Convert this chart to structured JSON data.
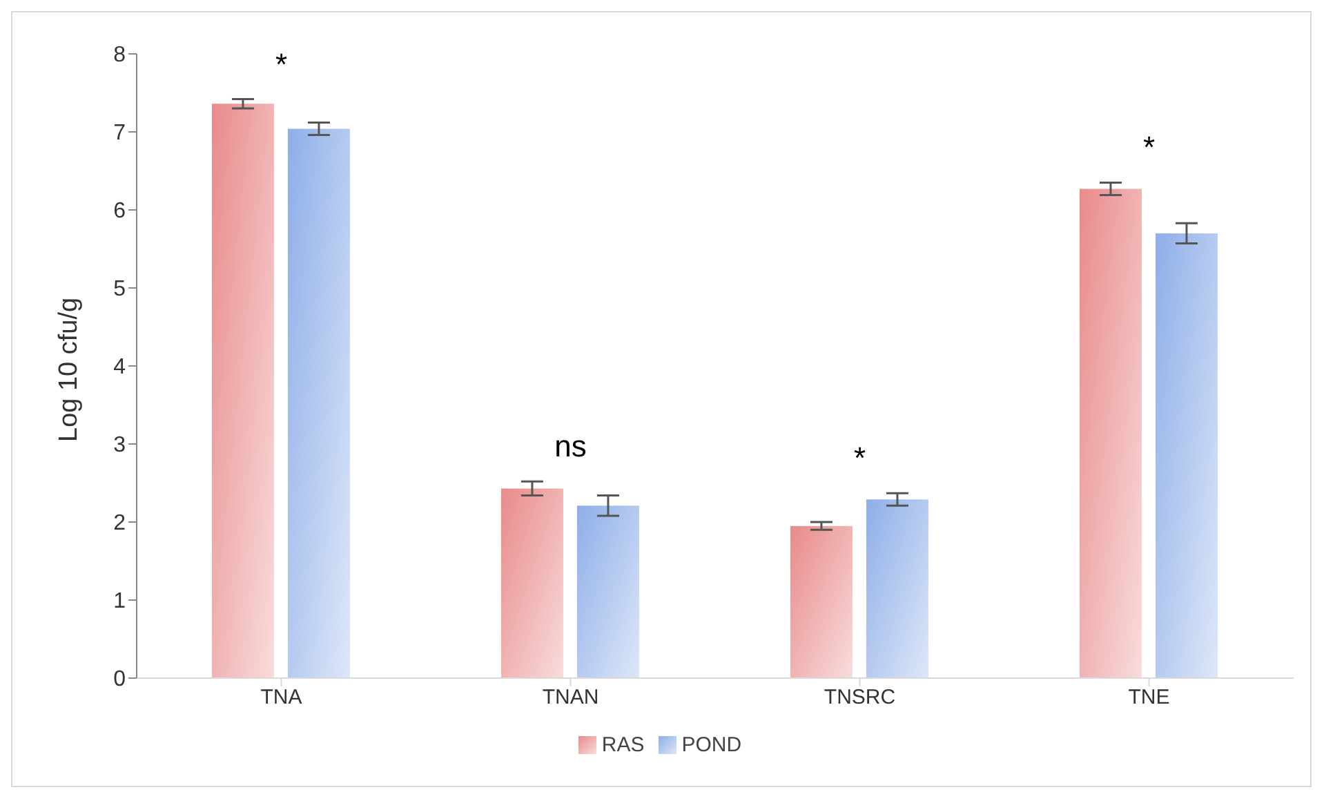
{
  "chart_data": {
    "type": "bar",
    "ylabel": "Log 10 cfu/g",
    "categories": [
      "TNA",
      "TNAN",
      "TNSRC",
      "TNE"
    ],
    "series": [
      {
        "name": "RAS",
        "color": "#e98a8a",
        "values": [
          7.36,
          2.43,
          1.95,
          6.27
        ],
        "errors": [
          0.06,
          0.09,
          0.05,
          0.08
        ]
      },
      {
        "name": "POND",
        "color": "#8eaee8",
        "values": [
          7.04,
          2.21,
          2.29,
          5.7
        ],
        "errors": [
          0.08,
          0.13,
          0.08,
          0.13
        ]
      }
    ],
    "ylim": [
      0,
      8
    ],
    "yticks": [
      0,
      1,
      2,
      3,
      4,
      5,
      6,
      7,
      8
    ],
    "grid": false,
    "legend": "bottom",
    "annotations": [
      "*",
      "ns",
      "*",
      "*"
    ]
  }
}
